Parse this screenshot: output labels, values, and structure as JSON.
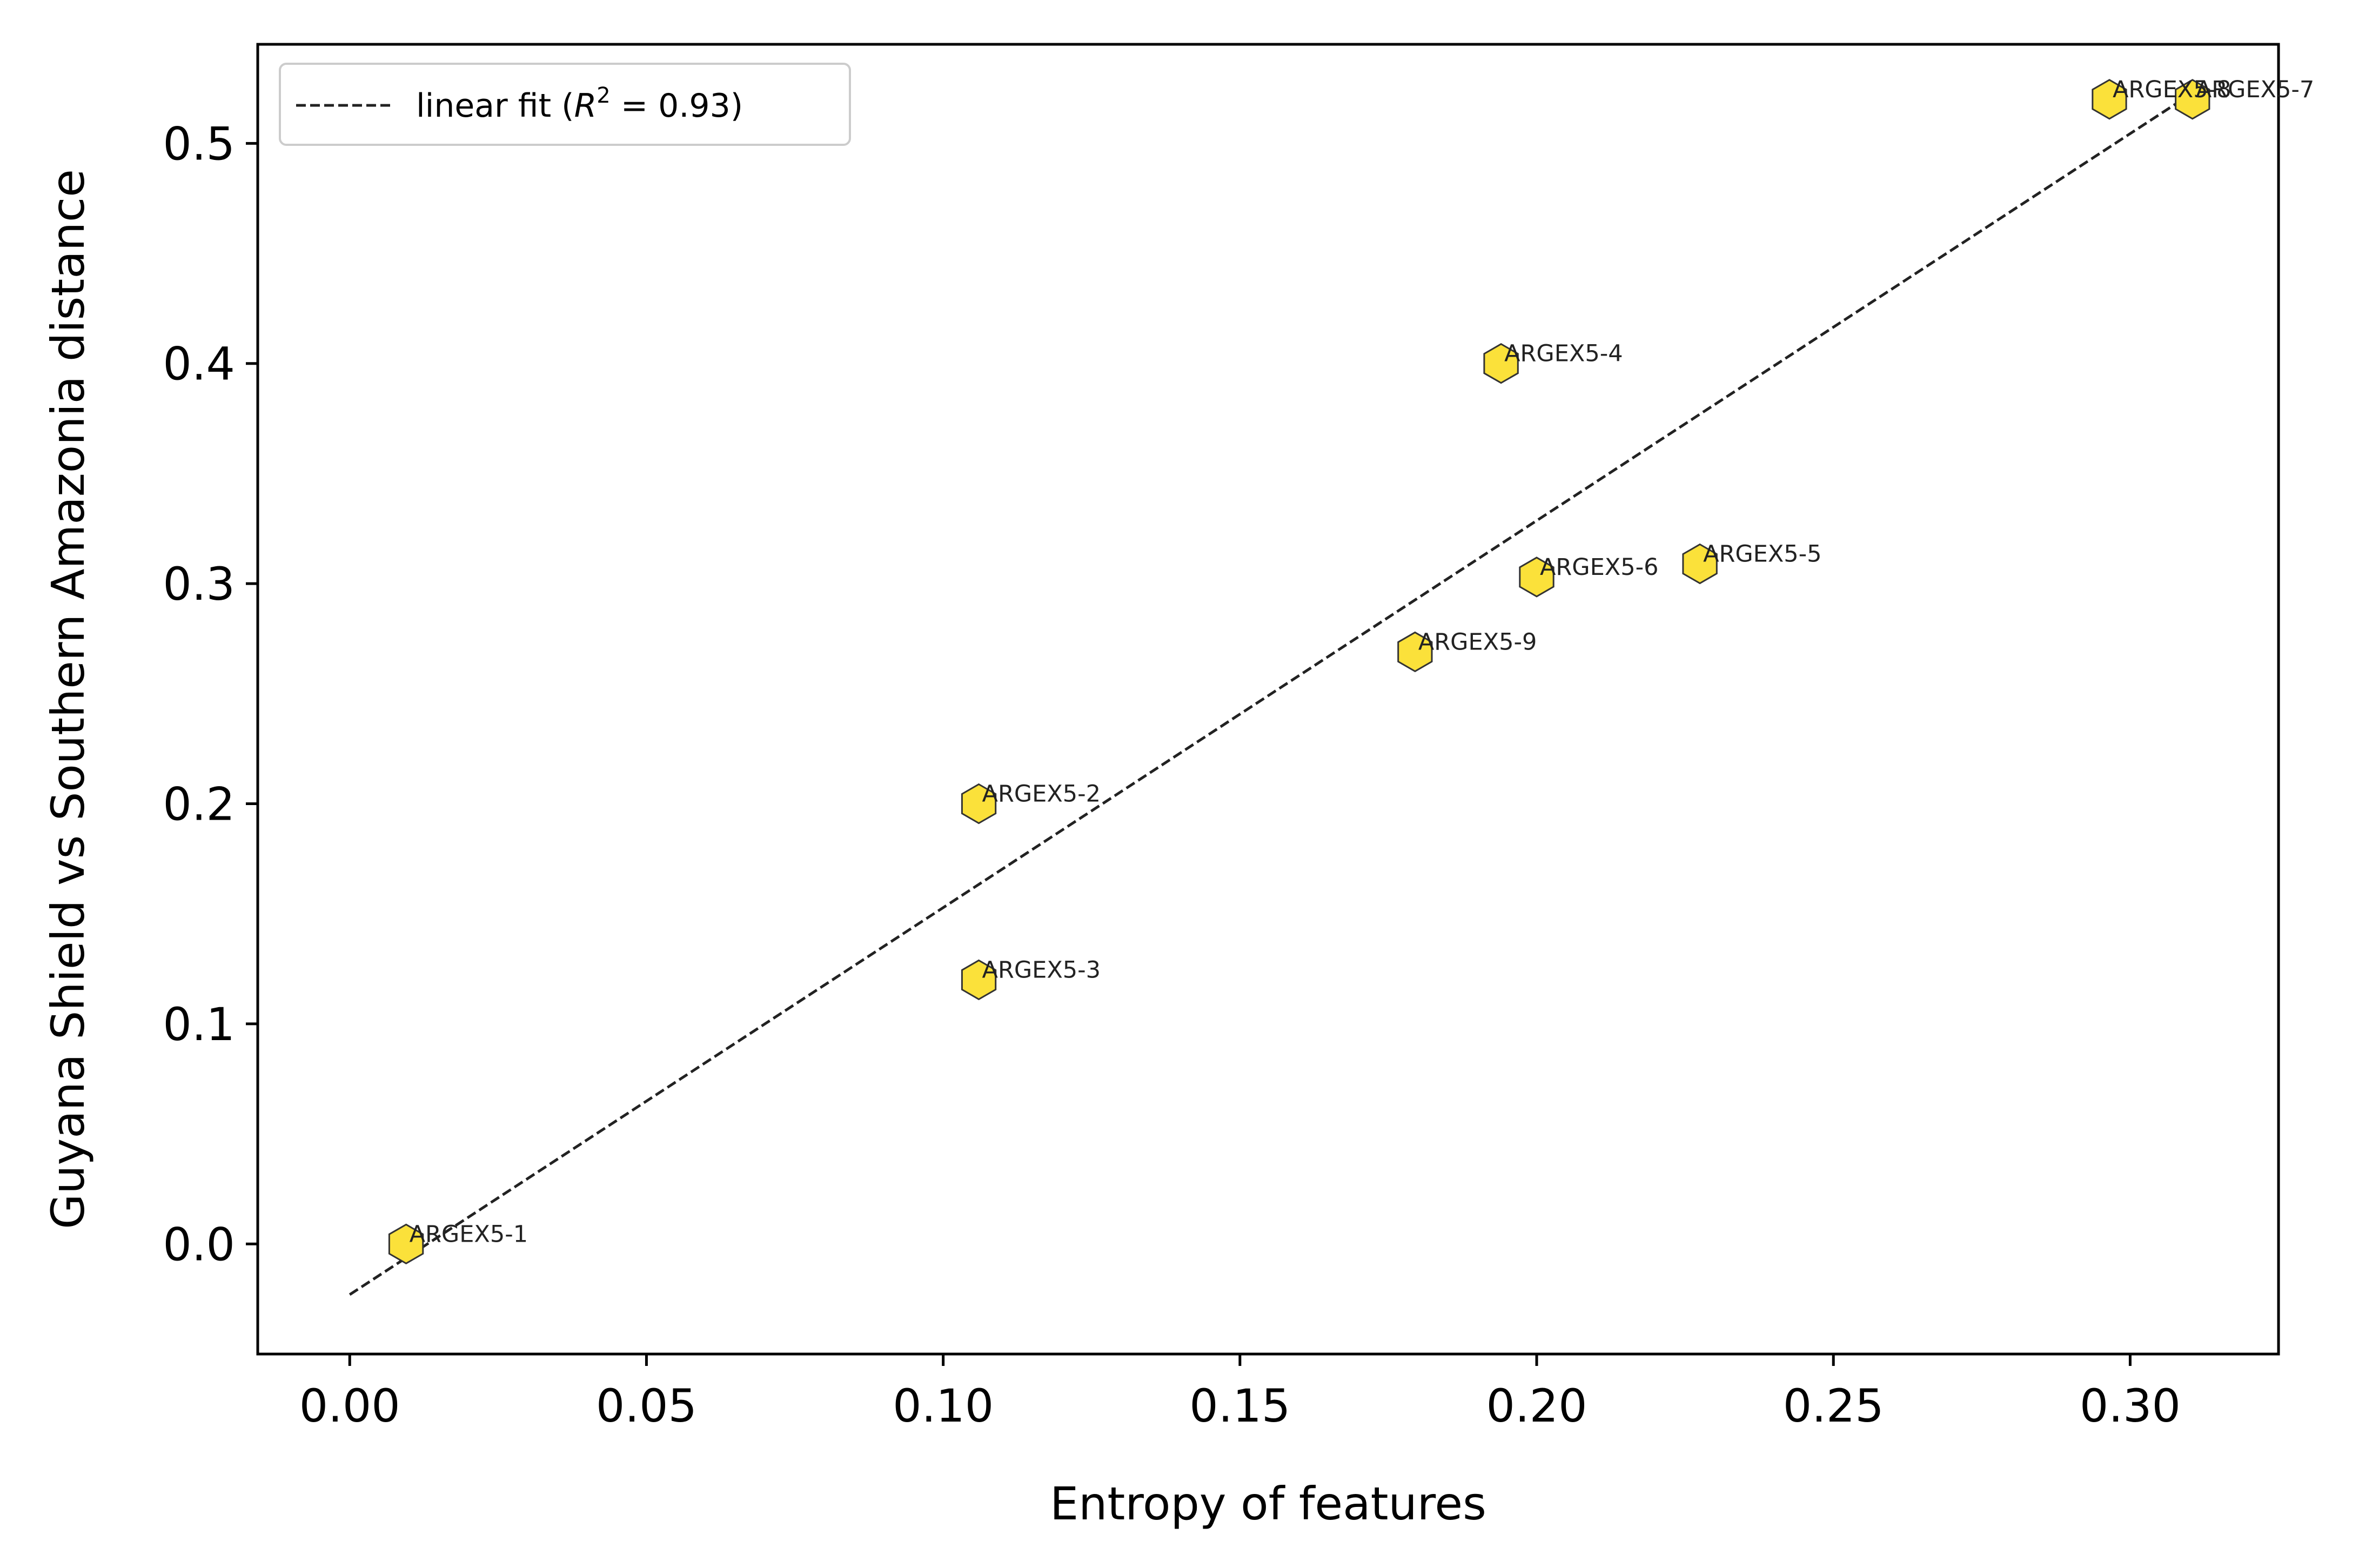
{
  "chart_data": {
    "type": "scatter",
    "xlabel": "Entropy of features",
    "ylabel": "Guyana Shield vs Southern Amazonia distance",
    "xlim": [
      -0.0155,
      0.325
    ],
    "ylim": [
      -0.05,
      0.545
    ],
    "xticks": [
      0.0,
      0.05,
      0.1,
      0.15,
      0.2,
      0.25,
      0.3
    ],
    "xtick_labels": [
      "0.00",
      "0.05",
      "0.10",
      "0.15",
      "0.20",
      "0.25",
      "0.30"
    ],
    "yticks": [
      0.0,
      0.1,
      0.2,
      0.3,
      0.4,
      0.5
    ],
    "ytick_labels": [
      "0.0",
      "0.1",
      "0.2",
      "0.3",
      "0.4",
      "0.5"
    ],
    "grid": false,
    "legend": {
      "placement": "upper-left",
      "entries": [
        {
          "label_prefix": "linear fit (",
          "label_r": "R",
          "label_sup": "2",
          "label_suffix": " = 0.93)"
        }
      ]
    },
    "marker": {
      "shape": "hexagon",
      "fill": "#fbe13a",
      "edge": "#333333"
    },
    "fit_line": {
      "x": [
        0.0,
        0.31
      ],
      "y": [
        -0.023,
        0.522
      ],
      "color": "#222222",
      "style": "dashed"
    },
    "points": [
      {
        "label": "ARGEX5-1",
        "x": 0.0095,
        "y": 0.0
      },
      {
        "label": "ARGEX5-2",
        "x": 0.106,
        "y": 0.2
      },
      {
        "label": "ARGEX5-3",
        "x": 0.106,
        "y": 0.12
      },
      {
        "label": "ARGEX5-4",
        "x": 0.194,
        "y": 0.4
      },
      {
        "label": "ARGEX5-5",
        "x": 0.2275,
        "y": 0.309
      },
      {
        "label": "ARGEX5-6",
        "x": 0.2,
        "y": 0.303
      },
      {
        "label": "ARGEX5-7",
        "x": 0.3105,
        "y": 0.52
      },
      {
        "label": "ARGEX5-8",
        "x": 0.2965,
        "y": 0.52
      },
      {
        "label": "ARGEX5-9",
        "x": 0.1795,
        "y": 0.269
      }
    ]
  }
}
